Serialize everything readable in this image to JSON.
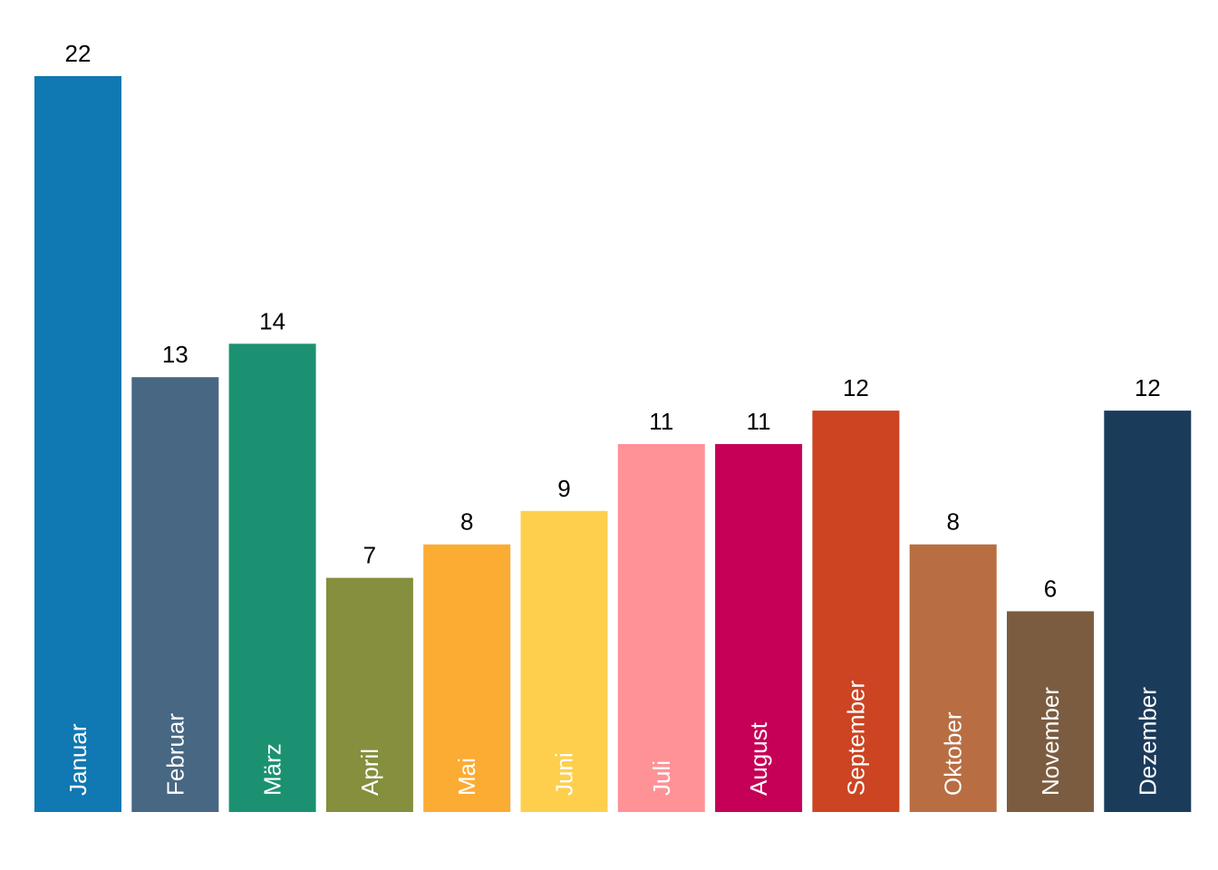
{
  "chart_data": {
    "type": "bar",
    "title": "",
    "xlabel": "",
    "ylabel": "",
    "ylim": [
      0,
      22
    ],
    "grid": false,
    "legend": "none",
    "category_labels_inside_bars": true,
    "category_label_orientation": "vertical",
    "categories": [
      "Januar",
      "Februar",
      "März",
      "April",
      "Mai",
      "Juni",
      "Juli",
      "August",
      "September",
      "Oktober",
      "November",
      "Dezember"
    ],
    "values": [
      22,
      13,
      14,
      7,
      8,
      9,
      11,
      11,
      12,
      8,
      6,
      12
    ],
    "colors": [
      "#1078b2",
      "#476783",
      "#1c9172",
      "#858f3d",
      "#fbac33",
      "#fecf4c",
      "#fe9297",
      "#c50056",
      "#cc4422",
      "#b86e42",
      "#7b5c40",
      "#1b3b5b"
    ]
  }
}
